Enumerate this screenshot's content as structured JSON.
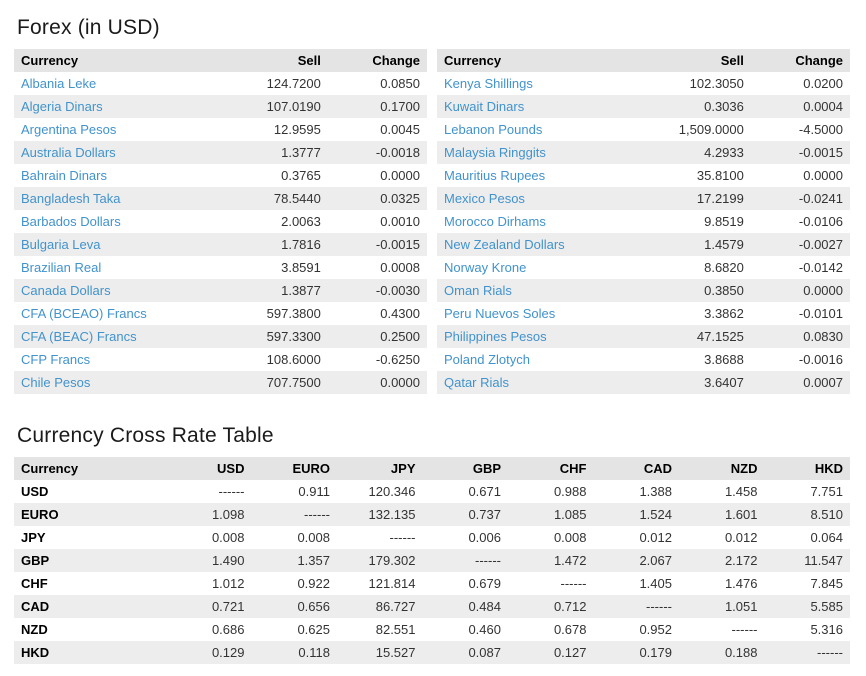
{
  "colors": {
    "link_blue": "#4193cd",
    "row_stripe": "#ededed",
    "header_bg": "#e4e4e4",
    "text": "#333333"
  },
  "forex": {
    "title": "Forex (in USD)",
    "columns": {
      "currency": "Currency",
      "sell": "Sell",
      "change": "Change"
    },
    "left_rows": [
      {
        "currency": "Albania Leke",
        "sell": "124.7200",
        "change": "0.0850"
      },
      {
        "currency": "Algeria Dinars",
        "sell": "107.0190",
        "change": "0.1700"
      },
      {
        "currency": "Argentina Pesos",
        "sell": "12.9595",
        "change": "0.0045"
      },
      {
        "currency": "Australia Dollars",
        "sell": "1.3777",
        "change": "-0.0018"
      },
      {
        "currency": "Bahrain Dinars",
        "sell": "0.3765",
        "change": "0.0000"
      },
      {
        "currency": "Bangladesh Taka",
        "sell": "78.5440",
        "change": "0.0325"
      },
      {
        "currency": "Barbados Dollars",
        "sell": "2.0063",
        "change": "0.0010"
      },
      {
        "currency": "Bulgaria Leva",
        "sell": "1.7816",
        "change": "-0.0015"
      },
      {
        "currency": "Brazilian Real",
        "sell": "3.8591",
        "change": "0.0008"
      },
      {
        "currency": "Canada Dollars",
        "sell": "1.3877",
        "change": "-0.0030"
      },
      {
        "currency": "CFA (BCEAO) Francs",
        "sell": "597.3800",
        "change": "0.4300"
      },
      {
        "currency": "CFA (BEAC) Francs",
        "sell": "597.3300",
        "change": "0.2500"
      },
      {
        "currency": "CFP Francs",
        "sell": "108.6000",
        "change": "-0.6250"
      },
      {
        "currency": "Chile Pesos",
        "sell": "707.7500",
        "change": "0.0000"
      }
    ],
    "right_rows": [
      {
        "currency": "Kenya Shillings",
        "sell": "102.3050",
        "change": "0.0200"
      },
      {
        "currency": "Kuwait Dinars",
        "sell": "0.3036",
        "change": "0.0004"
      },
      {
        "currency": "Lebanon Pounds",
        "sell": "1,509.0000",
        "change": "-4.5000"
      },
      {
        "currency": "Malaysia Ringgits",
        "sell": "4.2933",
        "change": "-0.0015"
      },
      {
        "currency": "Mauritius Rupees",
        "sell": "35.8100",
        "change": "0.0000"
      },
      {
        "currency": "Mexico Pesos",
        "sell": "17.2199",
        "change": "-0.0241"
      },
      {
        "currency": "Morocco Dirhams",
        "sell": "9.8519",
        "change": "-0.0106"
      },
      {
        "currency": "New Zealand Dollars",
        "sell": "1.4579",
        "change": "-0.0027"
      },
      {
        "currency": "Norway Krone",
        "sell": "8.6820",
        "change": "-0.0142"
      },
      {
        "currency": "Oman Rials",
        "sell": "0.3850",
        "change": "0.0000"
      },
      {
        "currency": "Peru Nuevos Soles",
        "sell": "3.3862",
        "change": "-0.0101"
      },
      {
        "currency": "Philippines Pesos",
        "sell": "47.1525",
        "change": "0.0830"
      },
      {
        "currency": "Poland Zlotych",
        "sell": "3.8688",
        "change": "-0.0016"
      },
      {
        "currency": "Qatar Rials",
        "sell": "3.6407",
        "change": "0.0007"
      }
    ]
  },
  "cross_rate": {
    "title": "Currency Cross Rate Table",
    "columns": [
      "Currency",
      "USD",
      "EURO",
      "JPY",
      "GBP",
      "CHF",
      "CAD",
      "NZD",
      "HKD"
    ],
    "rows": [
      {
        "label": "USD",
        "values": [
          "------",
          "0.911",
          "120.346",
          "0.671",
          "0.988",
          "1.388",
          "1.458",
          "7.751"
        ]
      },
      {
        "label": "EURO",
        "values": [
          "1.098",
          "------",
          "132.135",
          "0.737",
          "1.085",
          "1.524",
          "1.601",
          "8.510"
        ]
      },
      {
        "label": "JPY",
        "values": [
          "0.008",
          "0.008",
          "------",
          "0.006",
          "0.008",
          "0.012",
          "0.012",
          "0.064"
        ]
      },
      {
        "label": "GBP",
        "values": [
          "1.490",
          "1.357",
          "179.302",
          "------",
          "1.472",
          "2.067",
          "2.172",
          "11.547"
        ]
      },
      {
        "label": "CHF",
        "values": [
          "1.012",
          "0.922",
          "121.814",
          "0.679",
          "------",
          "1.405",
          "1.476",
          "7.845"
        ]
      },
      {
        "label": "CAD",
        "values": [
          "0.721",
          "0.656",
          "86.727",
          "0.484",
          "0.712",
          "------",
          "1.051",
          "5.585"
        ]
      },
      {
        "label": "NZD",
        "values": [
          "0.686",
          "0.625",
          "82.551",
          "0.460",
          "0.678",
          "0.952",
          "------",
          "5.316"
        ]
      },
      {
        "label": "HKD",
        "values": [
          "0.129",
          "0.118",
          "15.527",
          "0.087",
          "0.127",
          "0.179",
          "0.188",
          "------"
        ]
      }
    ]
  }
}
